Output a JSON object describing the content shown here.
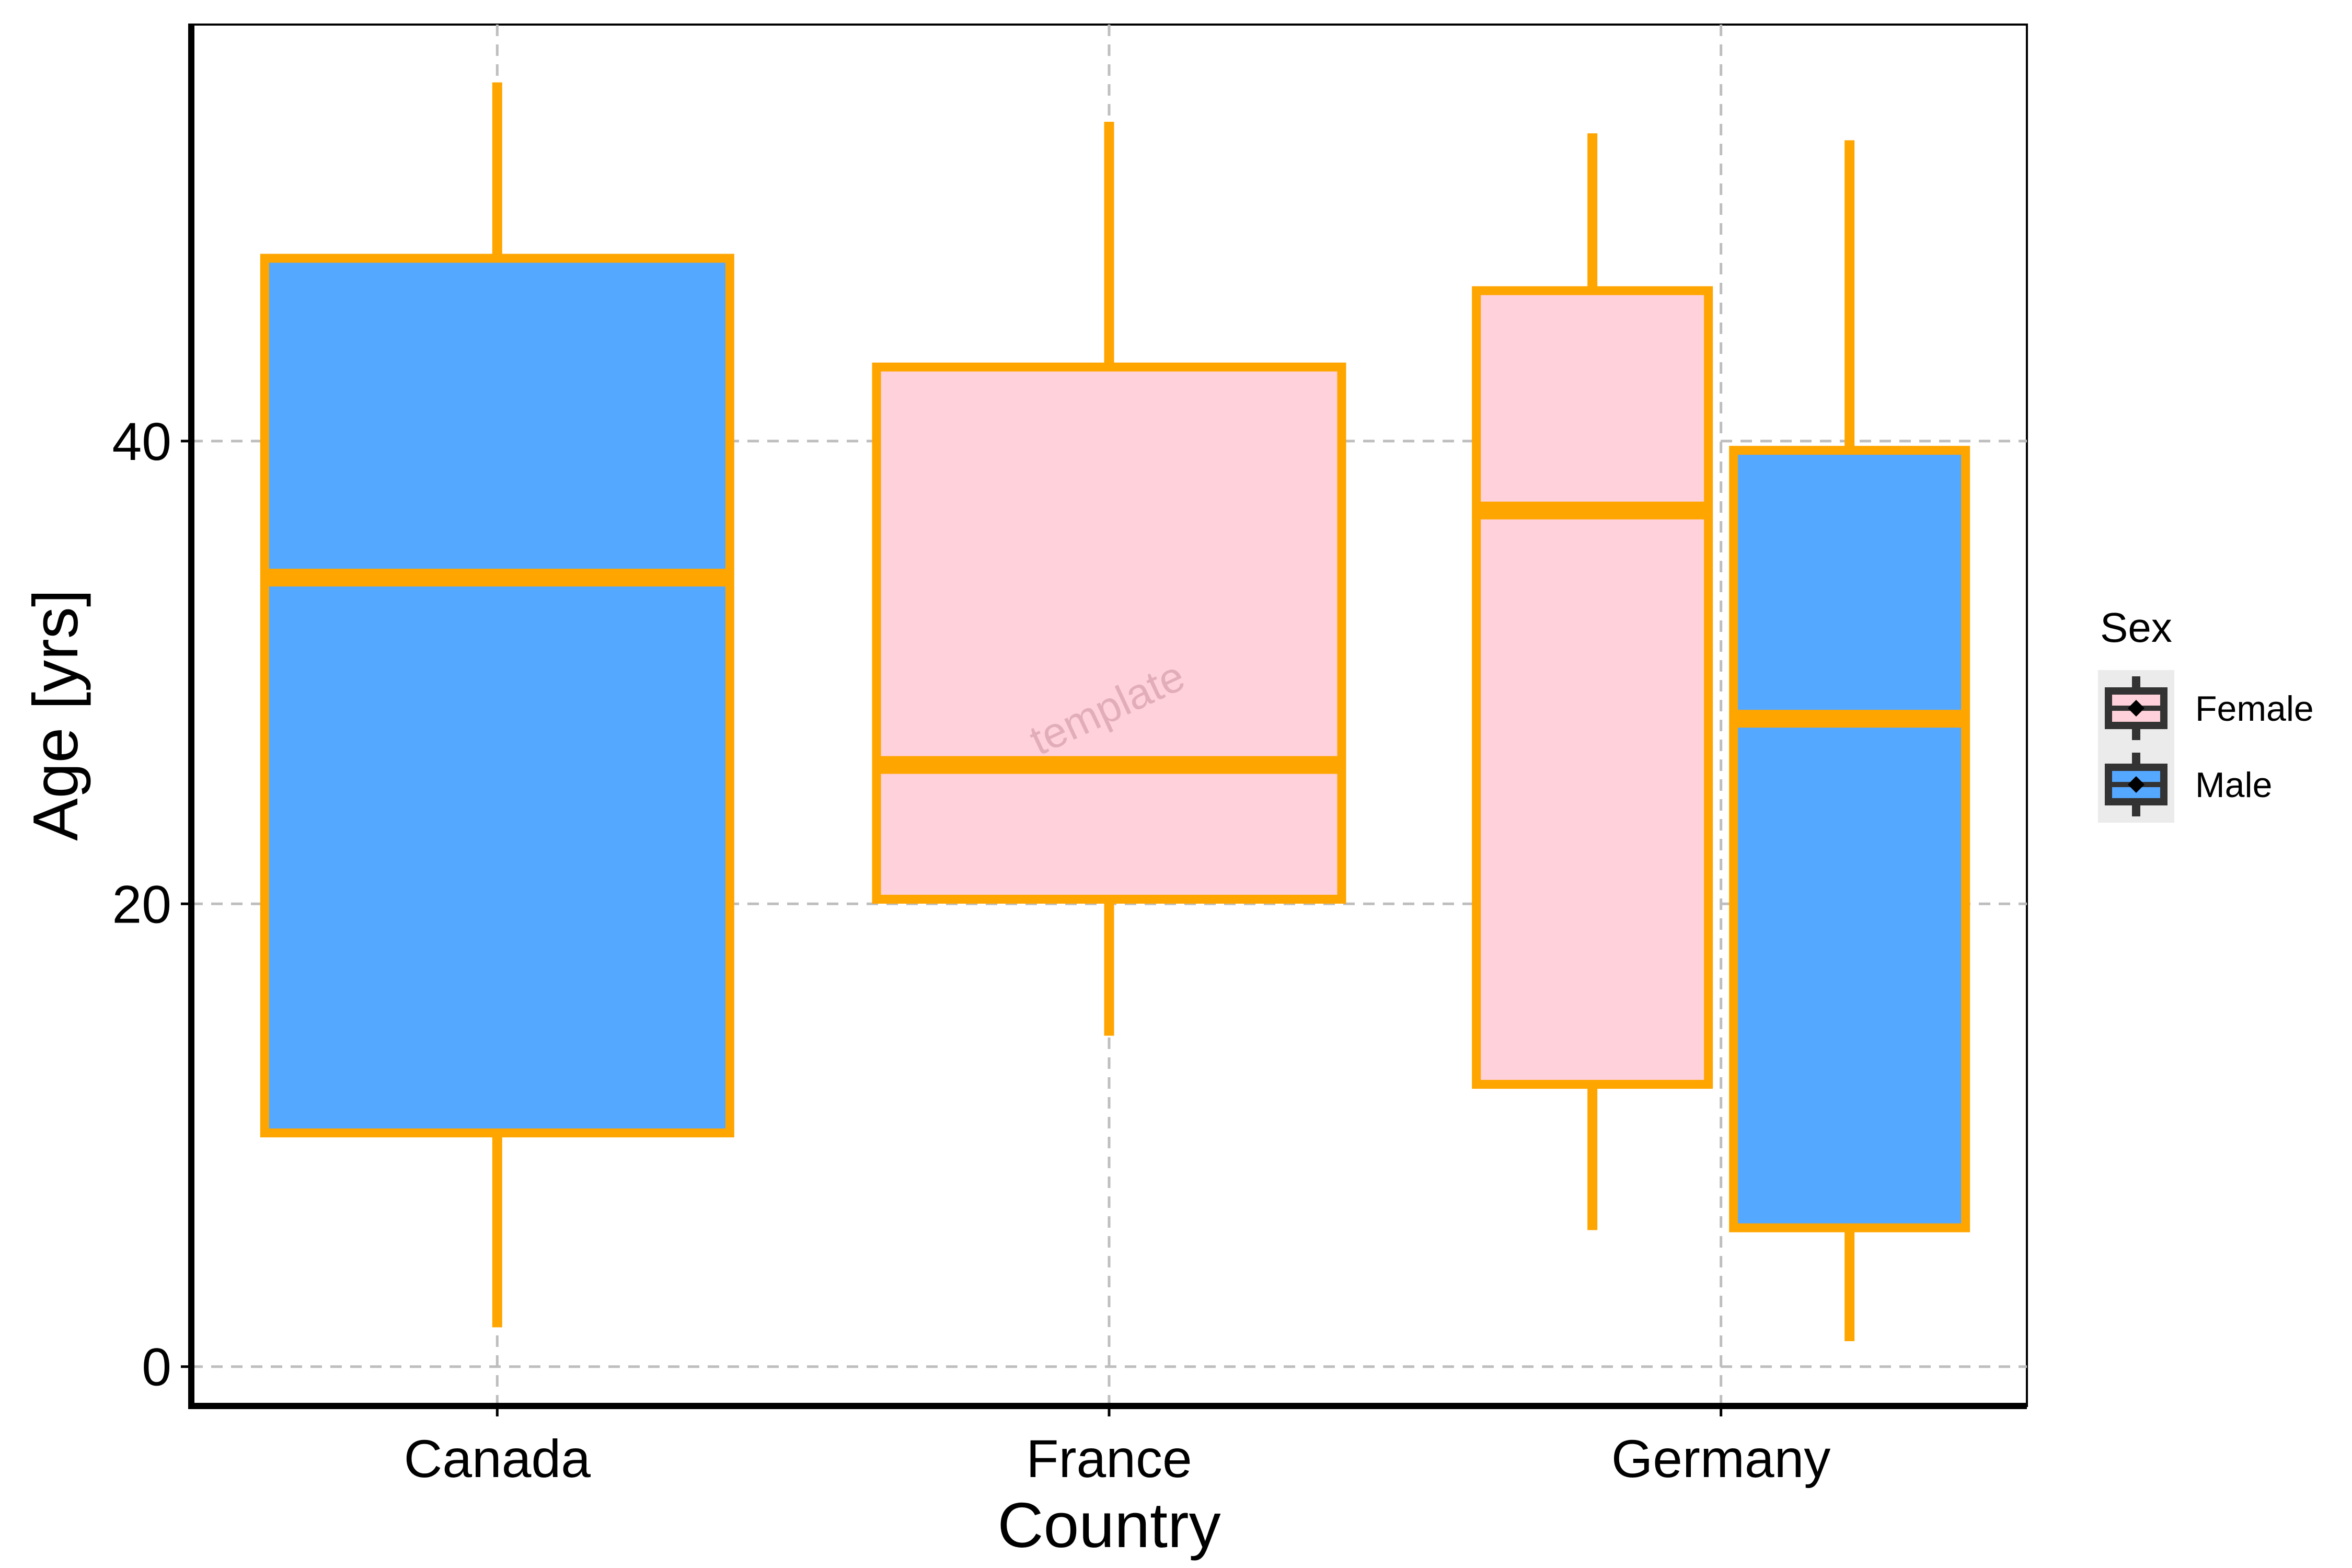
{
  "chart_data": {
    "type": "boxplot",
    "categories": [
      "Canada",
      "France",
      "Germany"
    ],
    "xlabel": "Country",
    "ylabel": "Age [yrs]",
    "ylim": [
      -1.7,
      58
    ],
    "y_ticks": [
      0,
      20,
      40
    ],
    "grid": "dashed",
    "legend": {
      "title": "Sex",
      "placement": "right"
    },
    "series": [
      {
        "name": "Female",
        "fill": "#FFD1DA",
        "boxes": [
          {
            "category": "France",
            "min": 14.3,
            "q1": 20.2,
            "median": 26.0,
            "q3": 43.2,
            "max": 53.8
          },
          {
            "category": "Germany",
            "min": 5.9,
            "q1": 12.2,
            "median": 37.0,
            "q3": 46.5,
            "max": 53.3
          }
        ]
      },
      {
        "name": "Male",
        "fill": "#54A8FF",
        "boxes": [
          {
            "category": "Canada",
            "min": 1.7,
            "q1": 10.1,
            "median": 34.1,
            "q3": 47.9,
            "max": 55.5
          },
          {
            "category": "Germany",
            "min": 1.1,
            "q1": 6.0,
            "median": 28.0,
            "q3": 39.6,
            "max": 53.0
          }
        ]
      }
    ],
    "colors": {
      "box_outline": "#FFA500",
      "grid": "#BEBEBE",
      "axis": "#000000"
    },
    "watermark": "template"
  }
}
